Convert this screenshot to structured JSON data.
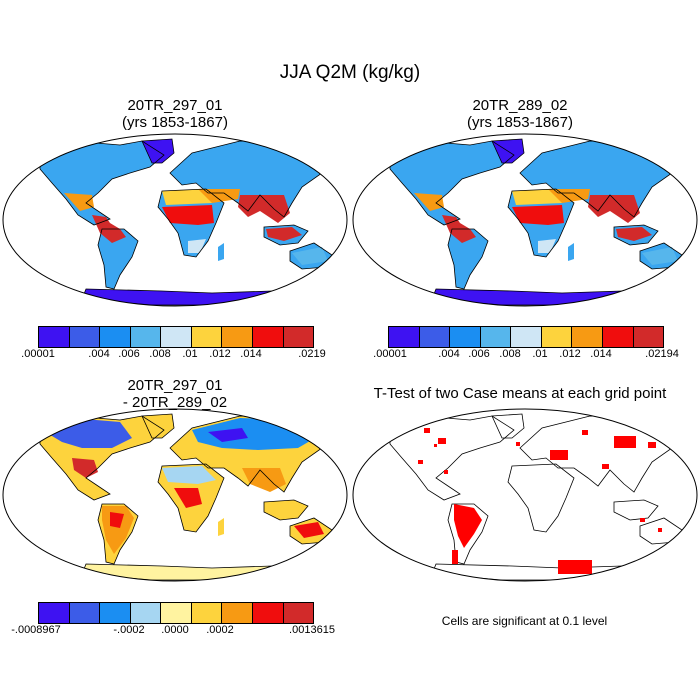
{
  "title": "JJA Q2M (kg/kg)",
  "panels": [
    {
      "title_line1": "20TR_297_01",
      "title_line2": "(yrs 1853-1867)"
    },
    {
      "title_line1": "20TR_289_02",
      "title_line2": "(yrs 1853-1867)"
    },
    {
      "title_line1": "20TR_297_01",
      "title_line2": "- 20TR_289_02"
    },
    {
      "title_line1": "T-Test of two Case means at each grid point",
      "title_line2": ""
    }
  ],
  "colorbars": [
    {
      "colors": [
        "#3e12f2",
        "#3c5ce8",
        "#1b8ef2",
        "#56b6ec",
        "#cfe6f5",
        "#fdd33d",
        "#f79a13",
        "#f00d0d",
        "#d22a2a"
      ],
      "labels": [
        ".00001",
        ".004",
        ".006",
        ".008",
        ".01",
        ".012",
        ".014",
        ".0219"
      ]
    },
    {
      "colors": [
        "#3e12f2",
        "#3c5ce8",
        "#1b8ef2",
        "#56b6ec",
        "#cfe6f5",
        "#fdd33d",
        "#f79a13",
        "#f00d0d",
        "#d22a2a"
      ],
      "labels": [
        ".00001",
        ".004",
        ".006",
        ".008",
        ".01",
        ".012",
        ".014",
        ".02194"
      ]
    },
    {
      "colors": [
        "#3e12f2",
        "#3c5ce8",
        "#1b8ef2",
        "#a6d6f2",
        "#fff3a0",
        "#fdd33d",
        "#f79a13",
        "#f00d0d",
        "#d22a2a"
      ],
      "labels": [
        "-.0008967",
        "-.0002",
        ".0000",
        ".0002",
        ".0013615"
      ]
    }
  ],
  "significance_color": "#ff0000",
  "note": "Cells are significant at 0.1 level"
}
